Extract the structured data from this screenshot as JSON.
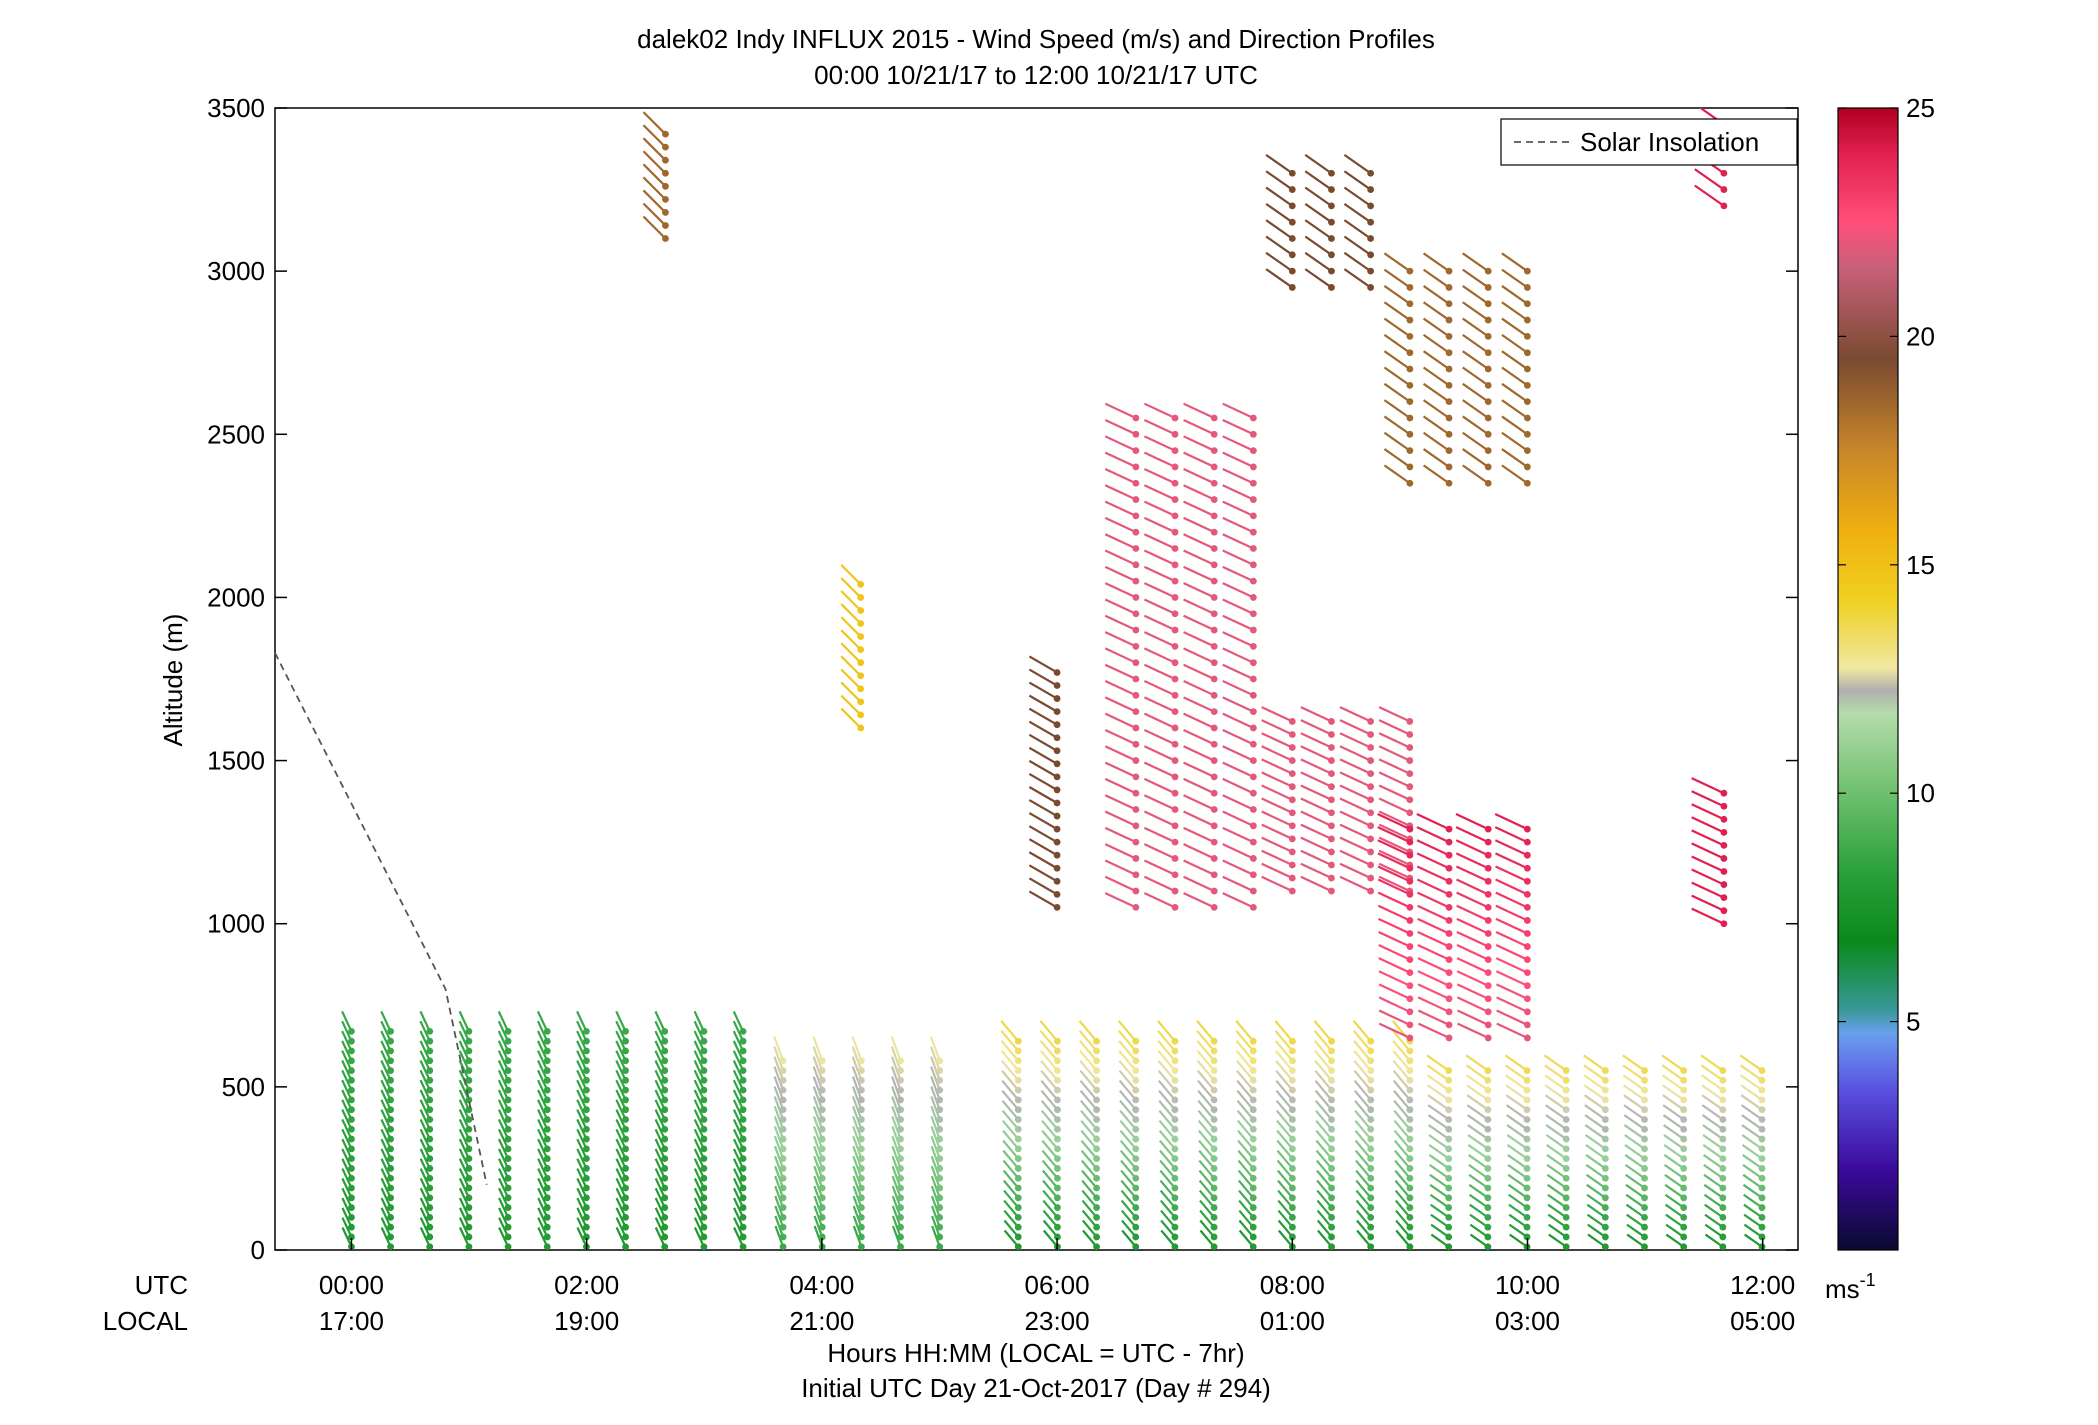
{
  "chart_data": {
    "type": "scatter",
    "subtype": "wind-barb-profile",
    "title": "dalek02 Indy INFLUX 2015 - Wind Speed (m/s) and Direction Profiles",
    "subtitle": "00:00 10/21/17 to 12:00 10/21/17  UTC",
    "ylabel": "Altitude (m)",
    "xlabel": "Hours HH:MM  (LOCAL = UTC - 7hr)",
    "xlabel2": "Initial UTC Day 21-Oct-2017 (Day # 294)",
    "x_row_labels": [
      "UTC",
      "LOCAL"
    ],
    "xlim_hours_utc": [
      -0.65,
      12.3
    ],
    "ylim": [
      0,
      3500
    ],
    "yticks": [
      0,
      500,
      1000,
      1500,
      2000,
      2500,
      3000,
      3500
    ],
    "xticks_utc": [
      "00:00",
      "02:00",
      "04:00",
      "06:00",
      "08:00",
      "10:00",
      "12:00"
    ],
    "xticks_local": [
      "17:00",
      "19:00",
      "21:00",
      "23:00",
      "01:00",
      "03:00",
      "05:00"
    ],
    "xticks_hours": [
      0,
      2,
      4,
      6,
      8,
      10,
      12
    ],
    "legend": {
      "entries": [
        "Solar Insolation"
      ],
      "placement": "top-right",
      "style": "dashed"
    },
    "colorbar": {
      "unit": "ms",
      "unit_exp": "-1",
      "min": 0,
      "max": 25,
      "ticks": [
        5,
        10,
        15,
        20,
        25
      ]
    },
    "solar_insolation": {
      "x": [
        -0.65,
        0.8,
        1.15
      ],
      "y": [
        1830,
        800,
        200
      ]
    },
    "profile_groups": [
      {
        "t_start": 0.0,
        "t_end": 3.35,
        "step": 0.333,
        "alt_min": 10,
        "alt_max": 690,
        "dz": 30,
        "speed_low": 8,
        "speed_high": 9,
        "dir_deg": 205
      },
      {
        "t_start": 3.67,
        "t_end": 5.33,
        "step": 0.333,
        "alt_min": 10,
        "alt_max": 590,
        "dz": 30,
        "speed_low": 9,
        "speed_high": 13,
        "dir_deg": 200
      },
      {
        "t_start": 5.67,
        "t_end": 9.0,
        "step": 0.333,
        "alt_min": 10,
        "alt_max": 640,
        "dz": 30,
        "speed_low": 8,
        "speed_high": 14,
        "dir_deg": 220
      },
      {
        "t_start": 9.33,
        "t_end": 12.0,
        "step": 0.333,
        "alt_min": 10,
        "alt_max": 560,
        "dz": 30,
        "speed_low": 8,
        "speed_high": 14,
        "dir_deg": 235
      },
      {
        "t_start": 6.0,
        "t_end": 6.33,
        "step": 0.333,
        "alt_min": 1050,
        "alt_max": 1780,
        "dz": 40,
        "speed_low": 20,
        "speed_high": 20,
        "dir_deg": 240
      },
      {
        "t_start": 6.67,
        "t_end": 7.67,
        "step": 0.333,
        "alt_min": 1050,
        "alt_max": 2550,
        "dz": 50,
        "speed_low": 22,
        "speed_high": 22,
        "dir_deg": 245
      },
      {
        "t_start": 8.0,
        "t_end": 9.0,
        "step": 0.333,
        "alt_min": 1100,
        "alt_max": 1650,
        "dz": 40,
        "speed_low": 22,
        "speed_high": 22,
        "dir_deg": 245
      },
      {
        "t_start": 9.0,
        "t_end": 10.0,
        "step": 0.333,
        "alt_min": 650,
        "alt_max": 1300,
        "dz": 40,
        "speed_low": 22,
        "speed_high": 24,
        "dir_deg": 245
      },
      {
        "t_start": 9.0,
        "t_end": 10.0,
        "step": 0.333,
        "alt_min": 2350,
        "alt_max": 3000,
        "dz": 50,
        "speed_low": 19,
        "speed_high": 19,
        "dir_deg": 235
      },
      {
        "t_start": 8.0,
        "t_end": 8.67,
        "step": 0.333,
        "alt_min": 2950,
        "alt_max": 3300,
        "dz": 50,
        "speed_low": 20,
        "speed_high": 20,
        "dir_deg": 235
      },
      {
        "t_start": 4.33,
        "t_end": 4.33,
        "step": 0.333,
        "alt_min": 1600,
        "alt_max": 2050,
        "dz": 40,
        "speed_low": 15,
        "speed_high": 15,
        "dir_deg": 225
      },
      {
        "t_start": 2.67,
        "t_end": 2.67,
        "step": 0.333,
        "alt_min": 3100,
        "alt_max": 3450,
        "dz": 40,
        "speed_low": 19,
        "speed_high": 19,
        "dir_deg": 225
      },
      {
        "t_start": 11.67,
        "t_end": 12.0,
        "step": 0.333,
        "alt_min": 1000,
        "alt_max": 1400,
        "dz": 40,
        "speed_low": 24,
        "speed_high": 24,
        "dir_deg": 245
      },
      {
        "t_start": 11.67,
        "t_end": 12.0,
        "step": 0.333,
        "alt_min": 3200,
        "alt_max": 3450,
        "dz": 50,
        "speed_low": 24,
        "speed_high": 24,
        "dir_deg": 235
      }
    ]
  }
}
